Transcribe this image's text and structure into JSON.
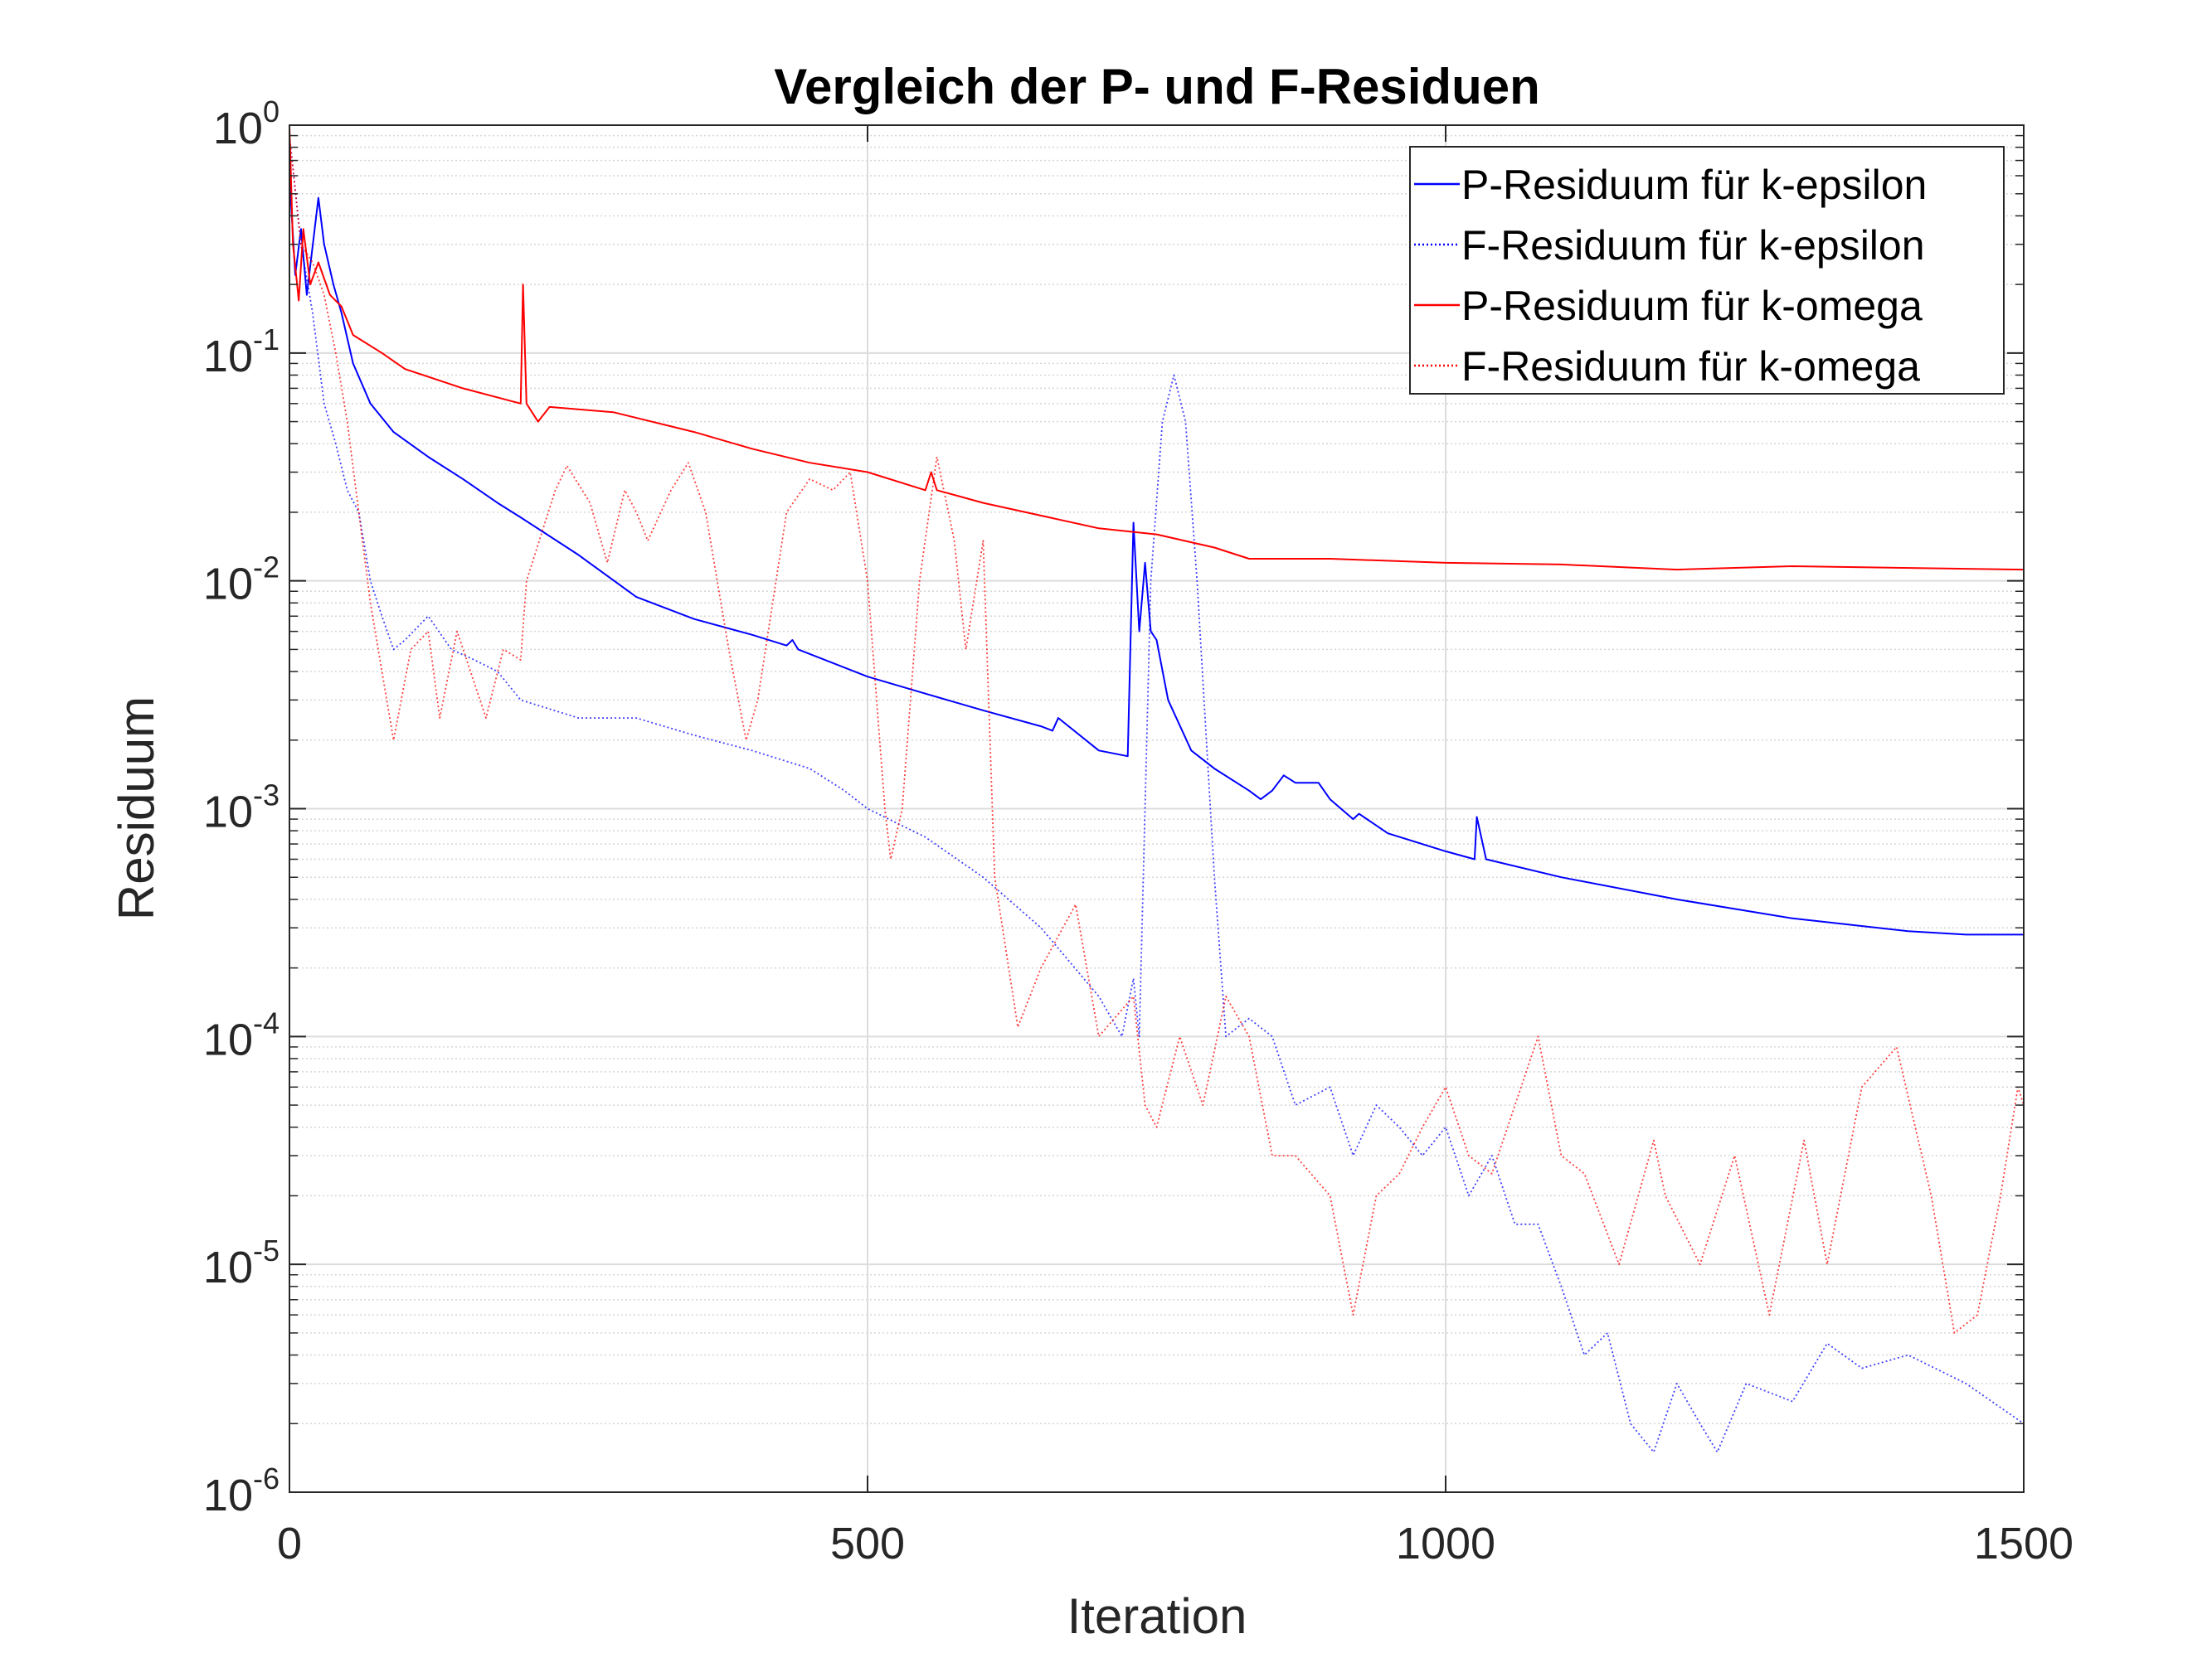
{
  "chart_data": {
    "type": "line",
    "title": "Vergleich der P- und F-Residuen",
    "xlabel": "Iteration",
    "ylabel": "Residuum",
    "xlim": [
      0,
      1500
    ],
    "ylim": [
      1e-06,
      1
    ],
    "yscale": "log",
    "grid": true,
    "minor_grid": true,
    "legend_position": "top-right",
    "xticks": [
      "0",
      "500",
      "1000",
      "1500"
    ],
    "xtick_values": [
      0,
      500,
      1000,
      1500
    ],
    "yticks": [
      {
        "base": "10",
        "exp": "0"
      },
      {
        "base": "10",
        "exp": "-1"
      },
      {
        "base": "10",
        "exp": "-2"
      },
      {
        "base": "10",
        "exp": "-3"
      },
      {
        "base": "10",
        "exp": "-4"
      },
      {
        "base": "10",
        "exp": "-5"
      },
      {
        "base": "10",
        "exp": "-6"
      }
    ],
    "series": [
      {
        "name": "P-Residuum für k-epsilon",
        "color": "#0000ff",
        "style": "solid",
        "x": [
          0,
          5,
          10,
          15,
          25,
          30,
          38,
          45,
          55,
          70,
          90,
          120,
          150,
          180,
          200,
          250,
          300,
          350,
          400,
          430,
          435,
          440,
          500,
          550,
          600,
          650,
          660,
          665,
          700,
          725,
          730,
          735,
          740,
          745,
          750,
          760,
          780,
          800,
          830,
          840,
          850,
          860,
          870,
          890,
          900,
          920,
          925,
          950,
          1000,
          1025,
          1027,
          1035,
          1100,
          1200,
          1300,
          1400,
          1450,
          1500
        ],
        "y": [
          0.6,
          0.22,
          0.35,
          0.18,
          0.48,
          0.3,
          0.2,
          0.15,
          0.09,
          0.06,
          0.045,
          0.035,
          0.028,
          0.022,
          0.019,
          0.013,
          0.0085,
          0.0068,
          0.0058,
          0.0052,
          0.0055,
          0.005,
          0.0038,
          0.0032,
          0.0027,
          0.0023,
          0.0022,
          0.0025,
          0.0018,
          0.0017,
          0.018,
          0.006,
          0.012,
          0.006,
          0.0055,
          0.003,
          0.0018,
          0.0015,
          0.0012,
          0.0011,
          0.0012,
          0.0014,
          0.0013,
          0.0013,
          0.0011,
          0.0009,
          0.00095,
          0.00078,
          0.00065,
          0.0006,
          0.00092,
          0.0006,
          0.0005,
          0.0004,
          0.00033,
          0.00029,
          0.00028,
          0.00028
        ]
      },
      {
        "name": "F-Residuum für k-epsilon",
        "color": "#0000ff",
        "style": "dotted",
        "x": [
          0,
          10,
          20,
          30,
          40,
          50,
          60,
          70,
          80,
          90,
          100,
          120,
          140,
          160,
          180,
          200,
          250,
          300,
          350,
          400,
          450,
          480,
          500,
          550,
          600,
          650,
          700,
          720,
          730,
          735,
          745,
          755,
          765,
          775,
          785,
          800,
          810,
          830,
          850,
          870,
          900,
          920,
          940,
          960,
          980,
          1000,
          1020,
          1040,
          1060,
          1080,
          1100,
          1120,
          1140,
          1160,
          1180,
          1200,
          1220,
          1235,
          1260,
          1300,
          1330,
          1360,
          1400,
          1450,
          1500
        ],
        "y": [
          0.9,
          0.3,
          0.15,
          0.06,
          0.04,
          0.025,
          0.02,
          0.01,
          0.007,
          0.005,
          0.0055,
          0.007,
          0.005,
          0.0045,
          0.004,
          0.003,
          0.0025,
          0.0025,
          0.0021,
          0.0018,
          0.0015,
          0.0012,
          0.001,
          0.00075,
          0.0005,
          0.0003,
          0.00015,
          0.0001,
          0.00018,
          0.0001,
          0.01,
          0.05,
          0.08,
          0.05,
          0.01,
          0.0005,
          0.0001,
          0.00012,
          0.0001,
          5e-05,
          6e-05,
          3e-05,
          5e-05,
          4e-05,
          3e-05,
          4e-05,
          2e-05,
          3e-05,
          1.5e-05,
          1.5e-05,
          8e-06,
          4e-06,
          5e-06,
          2e-06,
          1.5e-06,
          3e-06,
          2e-06,
          1.5e-06,
          3e-06,
          2.5e-06,
          4.5e-06,
          3.5e-06,
          4e-06,
          3e-06,
          2e-06
        ]
      },
      {
        "name": "P-Residuum für k-omega",
        "color": "#ff0000",
        "style": "solid",
        "x": [
          0,
          3,
          8,
          12,
          18,
          25,
          35,
          45,
          55,
          80,
          100,
          150,
          200,
          202,
          205,
          215,
          225,
          280,
          350,
          400,
          450,
          500,
          550,
          555,
          560,
          600,
          700,
          750,
          800,
          830,
          900,
          1000,
          1100,
          1200,
          1300,
          1500
        ],
        "y": [
          1.0,
          0.3,
          0.17,
          0.35,
          0.2,
          0.25,
          0.18,
          0.16,
          0.12,
          0.1,
          0.085,
          0.07,
          0.06,
          0.2,
          0.06,
          0.05,
          0.058,
          0.055,
          0.045,
          0.038,
          0.033,
          0.03,
          0.025,
          0.03,
          0.025,
          0.022,
          0.017,
          0.016,
          0.014,
          0.0125,
          0.0125,
          0.012,
          0.0118,
          0.0112,
          0.0116,
          0.0112
        ]
      },
      {
        "name": "F-Residuum für k-omega",
        "color": "#ff0000",
        "style": "dotted",
        "x": [
          0,
          10,
          20,
          30,
          40,
          50,
          60,
          70,
          80,
          90,
          105,
          120,
          130,
          145,
          170,
          185,
          200,
          205,
          230,
          240,
          260,
          275,
          290,
          300,
          310,
          330,
          345,
          360,
          380,
          395,
          405,
          430,
          450,
          470,
          485,
          500,
          515,
          520,
          530,
          545,
          560,
          575,
          585,
          600,
          610,
          630,
          650,
          680,
          700,
          730,
          740,
          750,
          770,
          790,
          810,
          830,
          850,
          870,
          900,
          920,
          940,
          960,
          980,
          1000,
          1020,
          1040,
          1080,
          1100,
          1120,
          1150,
          1180,
          1190,
          1220,
          1250,
          1280,
          1310,
          1330,
          1360,
          1390,
          1420,
          1440,
          1460,
          1480,
          1495,
          1500
        ],
        "y": [
          0.9,
          0.3,
          0.25,
          0.18,
          0.1,
          0.05,
          0.02,
          0.008,
          0.004,
          0.002,
          0.005,
          0.006,
          0.0025,
          0.006,
          0.0025,
          0.005,
          0.0045,
          0.01,
          0.025,
          0.032,
          0.022,
          0.012,
          0.025,
          0.02,
          0.015,
          0.025,
          0.033,
          0.02,
          0.005,
          0.002,
          0.003,
          0.02,
          0.028,
          0.025,
          0.03,
          0.01,
          0.001,
          0.0006,
          0.001,
          0.01,
          0.035,
          0.015,
          0.005,
          0.015,
          0.0005,
          0.00011,
          0.0002,
          0.00038,
          0.0001,
          0.00015,
          5e-05,
          4e-05,
          0.0001,
          5e-05,
          0.00015,
          0.0001,
          3e-05,
          3e-05,
          2e-05,
          6e-06,
          2e-05,
          2.5e-05,
          4e-05,
          6e-05,
          3e-05,
          2.5e-05,
          0.0001,
          3e-05,
          2.5e-05,
          1e-05,
          3.5e-05,
          2e-05,
          1e-05,
          3e-05,
          6e-06,
          3.5e-05,
          1e-05,
          6e-05,
          9e-05,
          2e-05,
          5e-06,
          6e-06,
          2e-05,
          6e-05,
          5e-05
        ]
      }
    ]
  }
}
